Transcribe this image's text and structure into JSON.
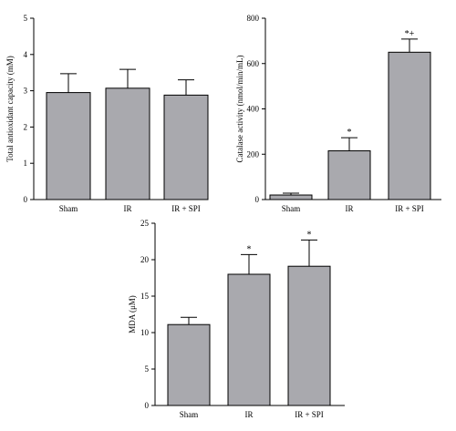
{
  "chart_data": [
    {
      "type": "bar",
      "ylabel": "Total antioxidant capacity (mM)",
      "categories": [
        "Sham",
        "IR",
        "IR + SPI"
      ],
      "values": [
        2.95,
        3.07,
        2.88
      ],
      "errors": [
        0.52,
        0.52,
        0.42
      ],
      "annotations": [
        "",
        "",
        ""
      ],
      "ylim": [
        0,
        5
      ],
      "yticks": [
        0,
        1,
        2,
        3,
        4,
        5
      ],
      "bar_color": "#a9a9ae"
    },
    {
      "type": "bar",
      "ylabel": "Catalase activity (nmol/min/mL)",
      "categories": [
        "Sham",
        "IR",
        "IR + SPI"
      ],
      "values": [
        20,
        215,
        650
      ],
      "errors": [
        8,
        58,
        58
      ],
      "annotations": [
        "",
        "*",
        "*+"
      ],
      "ylim": [
        0,
        800
      ],
      "yticks": [
        0,
        200,
        400,
        600,
        800
      ],
      "bar_color": "#a9a9ae"
    },
    {
      "type": "bar",
      "ylabel": "MDA (μM)",
      "categories": [
        "Sham",
        "IR",
        "IR + SPI"
      ],
      "values": [
        11.1,
        18.0,
        19.1
      ],
      "errors": [
        1.0,
        2.7,
        3.6
      ],
      "annotations": [
        "",
        "*",
        "*"
      ],
      "ylim": [
        0,
        25
      ],
      "yticks": [
        0,
        5,
        10,
        15,
        20,
        25
      ],
      "bar_color": "#a9a9ae"
    }
  ]
}
